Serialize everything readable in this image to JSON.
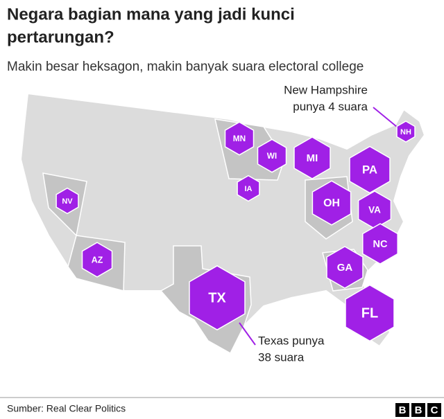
{
  "title": [
    "Negara bagian mana yang jadi kunci",
    "pertarungan?"
  ],
  "subtitle": "Makin besar heksagon, makin banyak suara electoral college",
  "states": [
    {
      "label": "MN",
      "votes": 10
    },
    {
      "label": "WI",
      "votes": 10
    },
    {
      "label": "MI",
      "votes": 16
    },
    {
      "label": "PA",
      "votes": 20
    },
    {
      "label": "IA",
      "votes": 6
    },
    {
      "label": "OH",
      "votes": 18
    },
    {
      "label": "VA",
      "votes": 13
    },
    {
      "label": "NC",
      "votes": 15
    },
    {
      "label": "NV",
      "votes": 6
    },
    {
      "label": "AZ",
      "votes": 11
    },
    {
      "label": "GA",
      "votes": 16
    },
    {
      "label": "TX",
      "votes": 38
    },
    {
      "label": "FL",
      "votes": 29
    },
    {
      "label": "NH",
      "votes": 4
    }
  ],
  "annotations": {
    "new_hampshire": [
      "New Hampshire",
      "punya 4 suara"
    ],
    "texas": [
      "Texas punya",
      "38 suara"
    ]
  },
  "footer": {
    "source": "Sumber: Real Clear Politics",
    "logo": [
      "B",
      "B",
      "C"
    ]
  }
}
